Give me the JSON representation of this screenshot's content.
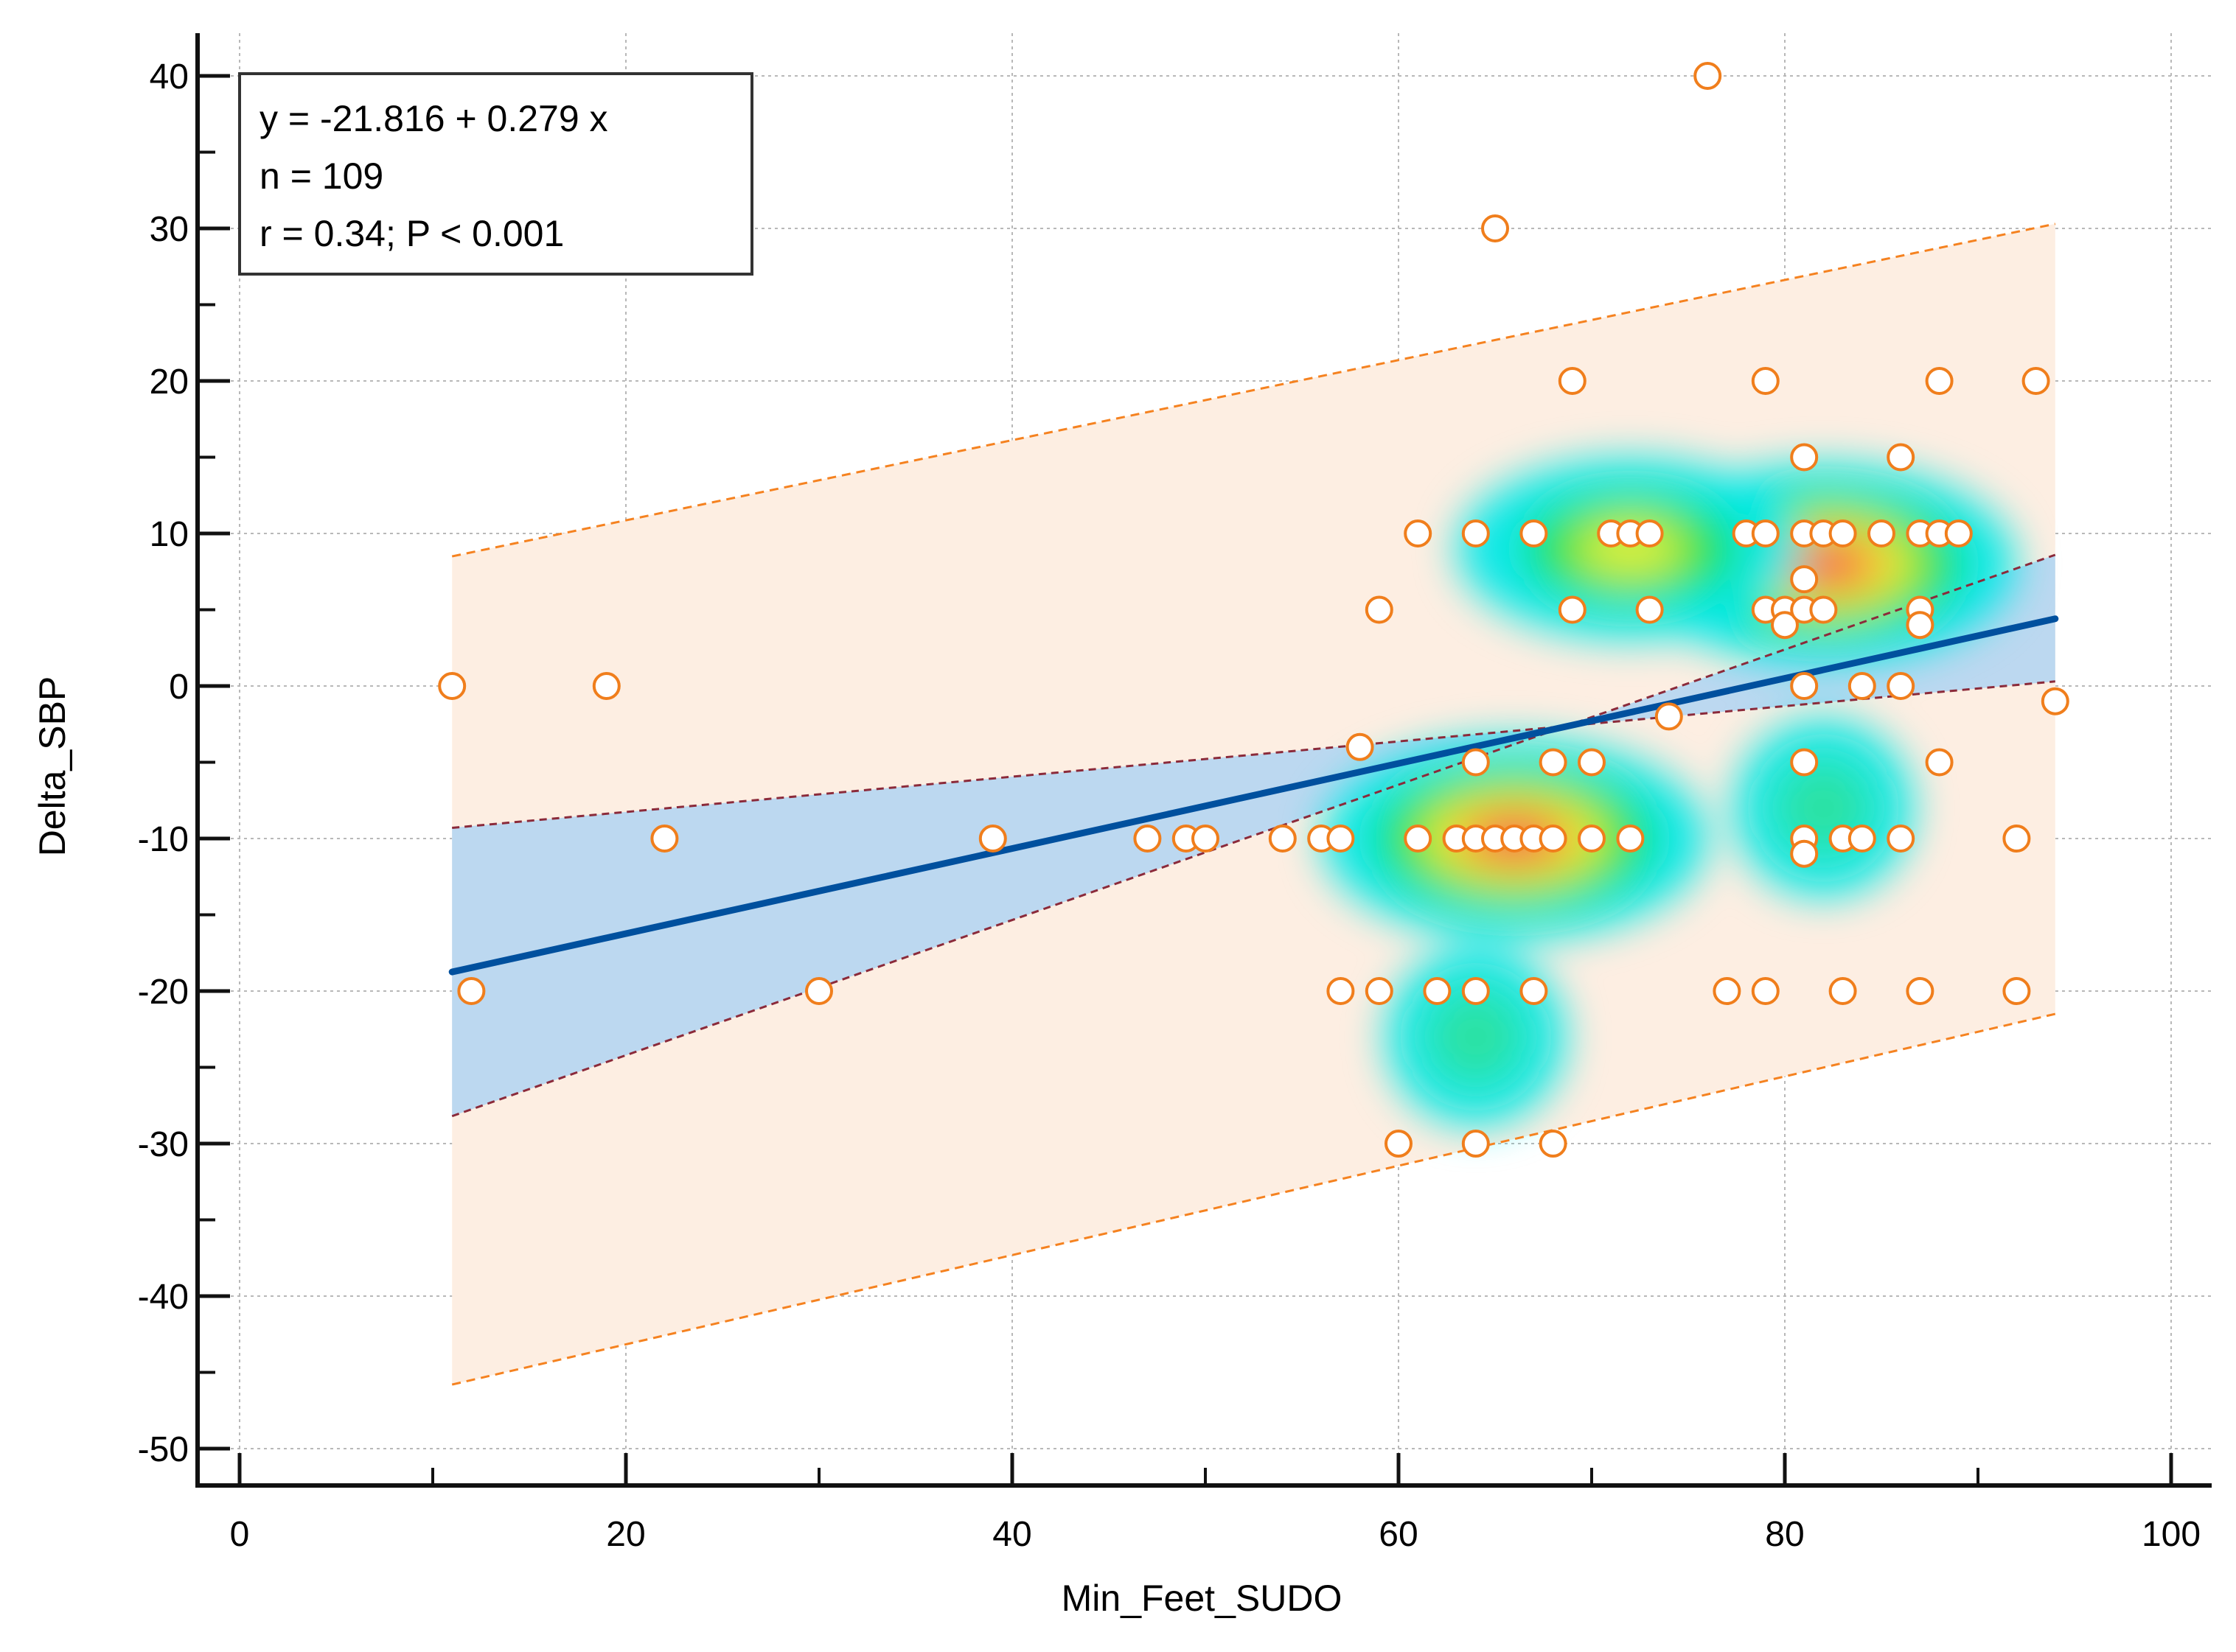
{
  "chart_data": {
    "type": "scatter",
    "title": "",
    "xlabel": "Min_Feet_SUDO",
    "ylabel": "Delta_SBP",
    "xlim": [
      0,
      100
    ],
    "ylim": [
      -50,
      40
    ],
    "xticks": [
      0,
      20,
      40,
      60,
      80,
      100
    ],
    "yticks": [
      40,
      30,
      20,
      10,
      0,
      -10,
      -20,
      -30,
      -40,
      -50
    ],
    "grid": true,
    "annotation": {
      "equation": "y = -21.816 + 0.279 x",
      "n": "n = 109",
      "stats": "r = 0.34; P < 0.001",
      "placement": "top-left"
    },
    "regression": {
      "intercept": -21.816,
      "slope": 0.279,
      "x_range": [
        11,
        94
      ]
    },
    "confidence_band": {
      "start": [
        -9.3,
        -28.2
      ],
      "end": [
        0.3,
        8.6
      ]
    },
    "prediction_band": {
      "start": [
        -45.8,
        8.5
      ],
      "end": [
        -21.5,
        30.3
      ]
    },
    "colors": {
      "points_edge": "#f07e1c",
      "points_fill": "#ffffff",
      "regression_line": "#00509e",
      "confidence_fill": "#bcd8f0",
      "confidence_edge": "#8b2a3a",
      "prediction_fill": "#fdeee2",
      "prediction_edge": "#f58220"
    },
    "density_hotspots": [
      {
        "x": 82,
        "y": 8,
        "level": "high"
      },
      {
        "x": 66,
        "y": -10,
        "level": "high"
      },
      {
        "x": 72,
        "y": 9,
        "level": "medium"
      },
      {
        "x": 82,
        "y": -8,
        "level": "low"
      },
      {
        "x": 64,
        "y": -23,
        "level": "low"
      }
    ],
    "points": [
      {
        "x": 11,
        "y": 0
      },
      {
        "x": 12,
        "y": -20
      },
      {
        "x": 19,
        "y": 0
      },
      {
        "x": 22,
        "y": -10
      },
      {
        "x": 30,
        "y": -20
      },
      {
        "x": 39,
        "y": -10
      },
      {
        "x": 47,
        "y": -10
      },
      {
        "x": 49,
        "y": -10
      },
      {
        "x": 50,
        "y": -10
      },
      {
        "x": 54,
        "y": -10
      },
      {
        "x": 56,
        "y": -10
      },
      {
        "x": 57,
        "y": -10
      },
      {
        "x": 57,
        "y": -20
      },
      {
        "x": 58,
        "y": -4
      },
      {
        "x": 59,
        "y": 5
      },
      {
        "x": 59,
        "y": -20
      },
      {
        "x": 60,
        "y": -30
      },
      {
        "x": 61,
        "y": 10
      },
      {
        "x": 61,
        "y": -10
      },
      {
        "x": 62,
        "y": -20
      },
      {
        "x": 63,
        "y": -10
      },
      {
        "x": 64,
        "y": 10
      },
      {
        "x": 64,
        "y": -5
      },
      {
        "x": 64,
        "y": -10
      },
      {
        "x": 64,
        "y": -20
      },
      {
        "x": 64,
        "y": -30
      },
      {
        "x": 65,
        "y": 30
      },
      {
        "x": 65,
        "y": -10
      },
      {
        "x": 66,
        "y": -10
      },
      {
        "x": 67,
        "y": 10
      },
      {
        "x": 67,
        "y": -10
      },
      {
        "x": 67,
        "y": -20
      },
      {
        "x": 68,
        "y": -5
      },
      {
        "x": 68,
        "y": -10
      },
      {
        "x": 68,
        "y": -30
      },
      {
        "x": 69,
        "y": 20
      },
      {
        "x": 69,
        "y": 5
      },
      {
        "x": 70,
        "y": -5
      },
      {
        "x": 70,
        "y": -10
      },
      {
        "x": 71,
        "y": 10
      },
      {
        "x": 72,
        "y": 10
      },
      {
        "x": 72,
        "y": -10
      },
      {
        "x": 73,
        "y": 10
      },
      {
        "x": 73,
        "y": 5
      },
      {
        "x": 74,
        "y": -2
      },
      {
        "x": 76,
        "y": 40
      },
      {
        "x": 77,
        "y": -20
      },
      {
        "x": 78,
        "y": 10
      },
      {
        "x": 79,
        "y": 20
      },
      {
        "x": 79,
        "y": 10
      },
      {
        "x": 79,
        "y": 5
      },
      {
        "x": 79,
        "y": -20
      },
      {
        "x": 80,
        "y": 5
      },
      {
        "x": 80,
        "y": 4
      },
      {
        "x": 81,
        "y": 15
      },
      {
        "x": 81,
        "y": 10
      },
      {
        "x": 81,
        "y": 7
      },
      {
        "x": 81,
        "y": 5
      },
      {
        "x": 81,
        "y": 0
      },
      {
        "x": 81,
        "y": -5
      },
      {
        "x": 81,
        "y": -10
      },
      {
        "x": 81,
        "y": -11
      },
      {
        "x": 82,
        "y": 10
      },
      {
        "x": 82,
        "y": 5
      },
      {
        "x": 83,
        "y": 10
      },
      {
        "x": 83,
        "y": -10
      },
      {
        "x": 83,
        "y": -20
      },
      {
        "x": 84,
        "y": 0
      },
      {
        "x": 84,
        "y": -10
      },
      {
        "x": 85,
        "y": 10
      },
      {
        "x": 86,
        "y": 15
      },
      {
        "x": 86,
        "y": 0
      },
      {
        "x": 86,
        "y": -10
      },
      {
        "x": 87,
        "y": 10
      },
      {
        "x": 87,
        "y": 5
      },
      {
        "x": 87,
        "y": 4
      },
      {
        "x": 87,
        "y": -20
      },
      {
        "x": 88,
        "y": 20
      },
      {
        "x": 88,
        "y": 10
      },
      {
        "x": 88,
        "y": -5
      },
      {
        "x": 89,
        "y": 10
      },
      {
        "x": 92,
        "y": -10
      },
      {
        "x": 92,
        "y": -20
      },
      {
        "x": 93,
        "y": 20
      },
      {
        "x": 94,
        "y": -1
      }
    ]
  }
}
